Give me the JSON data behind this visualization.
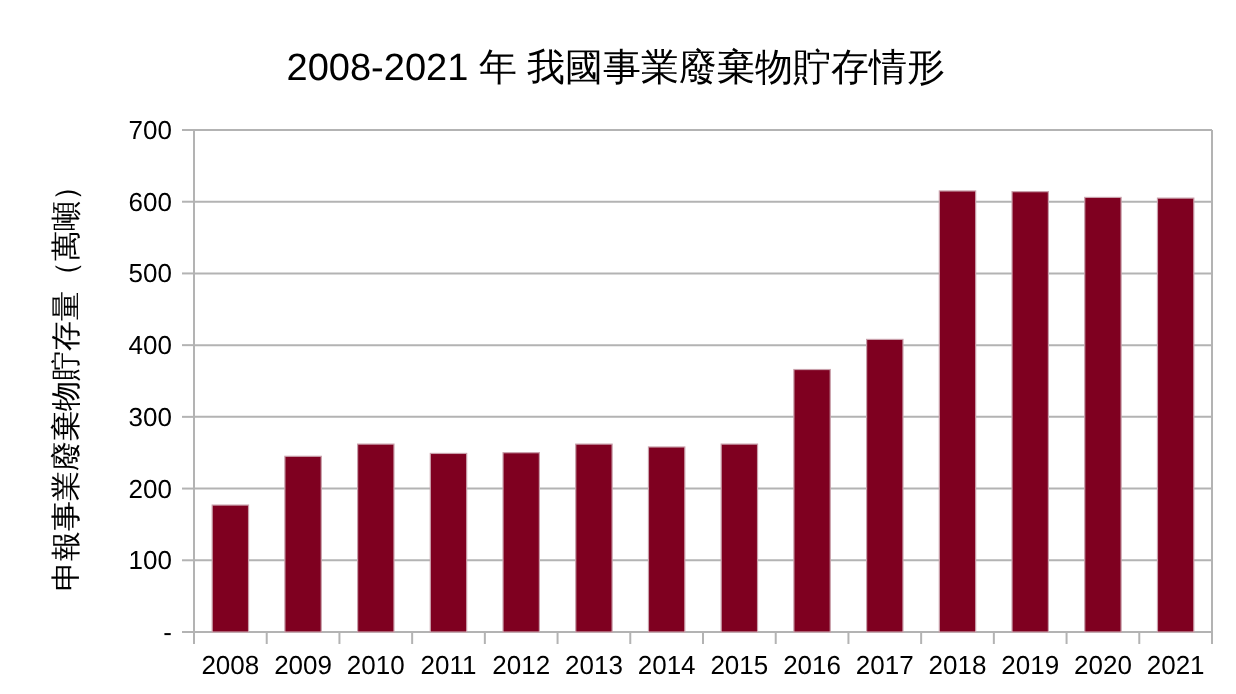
{
  "chart_data": {
    "type": "bar",
    "title": "2008-2021 年 我國事業廢棄物貯存情形",
    "ylabel": "申報事業廢棄物貯存量（萬噸）",
    "categories": [
      "2008",
      "2009",
      "2010",
      "2011",
      "2012",
      "2013",
      "2014",
      "2015",
      "2016",
      "2017",
      "2018",
      "2019",
      "2020",
      "2021"
    ],
    "values": [
      177,
      245,
      262,
      249,
      250,
      262,
      258,
      262,
      366,
      408,
      615,
      614,
      606,
      605
    ],
    "color": "#7f0020",
    "ylim": [
      0,
      700
    ],
    "yticks": [
      {
        "value": 0,
        "label": "-"
      },
      100,
      200,
      300,
      400,
      500,
      600,
      700
    ],
    "grid": "y"
  }
}
